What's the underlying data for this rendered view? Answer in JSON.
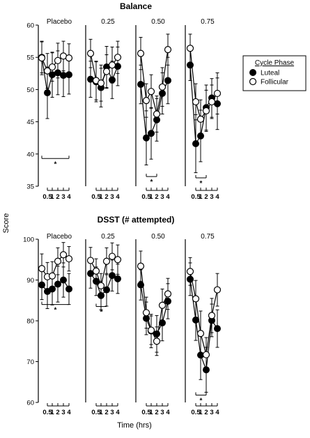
{
  "chart_data": [
    {
      "type": "line",
      "title": "Balance",
      "ylim": [
        35,
        60
      ],
      "yticks": [
        35,
        40,
        45,
        50,
        55,
        60
      ],
      "panels": [
        "Placebo",
        "0.25",
        "0.50",
        "0.75"
      ],
      "x_ticks": [
        "0.5",
        "1",
        "2",
        "3",
        "4"
      ],
      "series": [
        {
          "name": "Luteal",
          "marker": "filled",
          "panels": [
            {
              "values": [
                55.0,
                49.5,
                52.3,
                52.6,
                52.2,
                52.3
              ],
              "err": [
                2.4,
                4.0,
                3.5,
                3.4,
                3.3,
                3.0
              ]
            },
            {
              "values": [
                51.6,
                51.2,
                50.3,
                53.5,
                51.5,
                53.6
              ],
              "err": [
                2.8,
                3.1,
                3.0,
                3.2,
                2.9,
                3.0
              ]
            },
            {
              "values": [
                50.8,
                42.5,
                43.2,
                45.3,
                49.4,
                51.4
              ],
              "err": [
                3.0,
                4.2,
                4.0,
                3.3,
                3.2,
                3.6
              ]
            },
            {
              "values": [
                53.8,
                41.6,
                42.8,
                47.2,
                48.7,
                47.8
              ],
              "err": [
                2.4,
                4.5,
                4.0,
                3.5,
                3.0,
                4.0
              ]
            }
          ]
        },
        {
          "name": "Follicular",
          "marker": "open",
          "panels": [
            {
              "values": [
                54.9,
                52.9,
                53.5,
                54.5,
                55.2,
                54.9
              ],
              "err": [
                2.6,
                2.7,
                2.2,
                2.7,
                2.3,
                2.2
              ]
            },
            {
              "values": [
                55.6,
                51.4,
                51.0,
                52.8,
                53.8,
                55.0
              ],
              "err": [
                2.2,
                3.0,
                2.8,
                2.6,
                2.8,
                2.5
              ]
            },
            {
              "values": [
                55.6,
                48.3,
                49.7,
                46.2,
                50.4,
                56.2
              ],
              "err": [
                2.5,
                2.6,
                2.6,
                2.8,
                3.0,
                2.4
              ]
            },
            {
              "values": [
                56.4,
                48.1,
                45.4,
                46.7,
                48.1,
                49.4
              ],
              "err": [
                2.2,
                2.8,
                3.0,
                3.2,
                2.6,
                3.2
              ]
            }
          ]
        }
      ],
      "significance": [
        {
          "panel": 0,
          "from": 0,
          "to": 5,
          "y": 39.3,
          "label": "*"
        },
        {
          "panel": 2,
          "from": 1,
          "to": 3,
          "y": 36.5,
          "label": "*"
        },
        {
          "panel": 3,
          "from": 1,
          "to": 3,
          "y": 36.3,
          "label": "*"
        }
      ]
    },
    {
      "type": "line",
      "title": "DSST (# attempted)",
      "ylim": [
        60,
        100
      ],
      "yticks": [
        60,
        70,
        80,
        90,
        100
      ],
      "panels": [
        "Placebo",
        "0.25",
        "0.50",
        "0.75"
      ],
      "x_ticks": [
        "0.5",
        "1",
        "2",
        "3",
        "4"
      ],
      "series": [
        {
          "name": "Luteal",
          "marker": "filled",
          "panels": [
            {
              "values": [
                88.8,
                87.2,
                87.8,
                89.0,
                90.0,
                87.8
              ],
              "err": [
                3.6,
                4.2,
                3.9,
                4.4,
                4.2,
                3.8
              ]
            },
            {
              "values": [
                91.6,
                89.7,
                86.2,
                87.6,
                91.1,
                90.3
              ],
              "err": [
                3.6,
                3.5,
                3.5,
                4.0,
                3.8,
                3.6
              ]
            },
            {
              "values": [
                88.8,
                80.6,
                77.5,
                76.8,
                79.5,
                84.8
              ],
              "err": [
                3.7,
                4.0,
                4.1,
                4.5,
                4.4,
                4.3
              ]
            },
            {
              "values": [
                90.2,
                80.2,
                71.6,
                68.0,
                80.1,
                78.1
              ],
              "err": [
                4.0,
                5.0,
                6.0,
                5.5,
                4.0,
                4.6
              ]
            }
          ]
        },
        {
          "name": "Follicular",
          "marker": "open",
          "panels": [
            {
              "values": [
                92.8,
                90.8,
                91.0,
                94.6,
                96.2,
                95.2
              ],
              "err": [
                3.6,
                3.5,
                3.5,
                3.3,
                3.0,
                3.0
              ]
            },
            {
              "values": [
                94.8,
                92.2,
                88.6,
                94.6,
                95.8,
                95.0
              ],
              "err": [
                3.2,
                3.0,
                3.0,
                3.3,
                3.3,
                3.6
              ]
            },
            {
              "values": [
                93.4,
                82.0,
                77.7,
                75.0,
                83.8,
                86.6
              ],
              "err": [
                3.7,
                3.8,
                3.5,
                3.5,
                4.0,
                3.8
              ]
            },
            {
              "values": [
                92.1,
                85.4,
                76.9,
                71.7,
                81.3,
                87.6
              ],
              "err": [
                3.4,
                4.5,
                5.5,
                4.2,
                4.2,
                4.0
              ]
            }
          ]
        }
      ],
      "significance": [
        {
          "panel": 0,
          "from": 0,
          "to": 5,
          "y": 84.0,
          "label": "*"
        },
        {
          "panel": 1,
          "from": 1,
          "to": 3,
          "y": 83.5,
          "label": "*"
        },
        {
          "panel": 3,
          "from": 1,
          "to": 3,
          "y": 61.8,
          "label": "*"
        }
      ]
    }
  ],
  "xlabel": "Time (hrs)",
  "ylabel": "Score",
  "legend": {
    "title": "Cycle Phase",
    "items": [
      {
        "label": "Luteal",
        "marker": "filled"
      },
      {
        "label": "Follicular",
        "marker": "open"
      }
    ]
  }
}
